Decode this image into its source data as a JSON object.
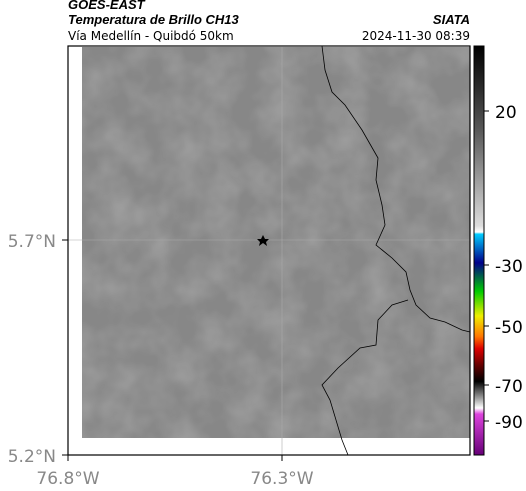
{
  "header": {
    "title": "GOES-EAST",
    "subtitle": "Temperatura de Brillo CH13",
    "region": "Vía Medellín - Quibdó 50km",
    "source": "SIATA",
    "datetime": "2024-11-30 08:39"
  },
  "map": {
    "y_labels": [
      "5.7°N",
      "5.2°N"
    ],
    "x_labels": [
      "76.8°W",
      "76.3°W"
    ]
  },
  "colorbar": {
    "tick_labels": [
      "20",
      "-30",
      "-50",
      "-70",
      "-90"
    ]
  }
}
